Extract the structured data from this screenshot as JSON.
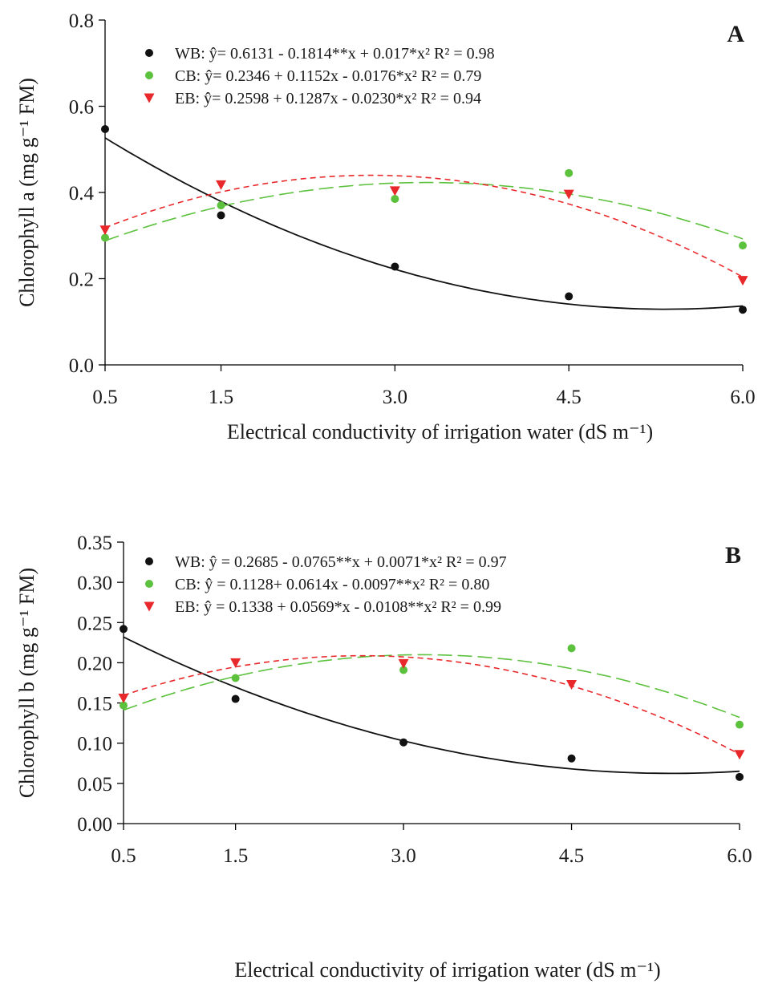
{
  "colors": {
    "WB": "#111111",
    "CB": "#5cc13c",
    "EB": "#e8282a"
  },
  "chart_data": [
    {
      "type": "scatter",
      "panel_label": "A",
      "ylabel": "Chlorophyll a (mg g⁻¹ FM)",
      "xlabel": "Electrical conductivity of irrigation water (dS m⁻¹)",
      "x": [
        0.5,
        1.5,
        3.0,
        4.5,
        6.0
      ],
      "x_tick_labels": [
        "0.5",
        "1.5",
        "3.0",
        "4.5",
        "6.0"
      ],
      "ylim": [
        0.0,
        0.8
      ],
      "y_ticks": [
        0.0,
        0.2,
        0.4,
        0.6,
        0.8
      ],
      "y_tick_labels": [
        "0.0",
        "0.2",
        "0.4",
        "0.6",
        "0.8"
      ],
      "legend_position": "top-left",
      "series": [
        {
          "name": "WB",
          "marker": "circle",
          "line": "solid",
          "legend": "WB: ŷ= 0.6131 - 0.1814**x + 0.017*x²  R² = 0.98",
          "coef": [
            0.6131,
            -0.1814,
            0.017
          ],
          "values": [
            0.547,
            0.347,
            0.228,
            0.159,
            0.128
          ]
        },
        {
          "name": "CB",
          "marker": "circle",
          "line": "long-dash",
          "legend": "CB: ŷ= 0.2346 + 0.1152x - 0.0176*x²  R² = 0.79",
          "coef": [
            0.2346,
            0.1152,
            -0.0176
          ],
          "values": [
            0.295,
            0.37,
            0.385,
            0.445,
            0.277
          ]
        },
        {
          "name": "EB",
          "marker": "triangle-down",
          "line": "short-dash",
          "legend": "EB: ŷ= 0.2598 + 0.1287x - 0.0230*x²  R² = 0.94",
          "coef": [
            0.2598,
            0.1287,
            -0.023
          ],
          "values": [
            0.313,
            0.418,
            0.404,
            0.396,
            0.196
          ]
        }
      ]
    },
    {
      "type": "scatter",
      "panel_label": "B",
      "ylabel": "Chlorophyll b (mg g⁻¹ FM)",
      "xlabel": "Electrical conductivity of irrigation water (dS m⁻¹)",
      "x": [
        0.5,
        1.5,
        3.0,
        4.5,
        6.0
      ],
      "x_tick_labels": [
        "0.5",
        "1.5",
        "3.0",
        "4.5",
        "6.0"
      ],
      "ylim": [
        0.0,
        0.35
      ],
      "y_ticks": [
        0.0,
        0.05,
        0.1,
        0.15,
        0.2,
        0.25,
        0.3,
        0.35
      ],
      "y_tick_labels": [
        "0.00",
        "0.05",
        "0.10",
        "0.15",
        "0.20",
        "0.25",
        "0.30",
        "0.35"
      ],
      "legend_position": "top-left",
      "series": [
        {
          "name": "WB",
          "marker": "circle",
          "line": "solid",
          "legend": "WB: ŷ = 0.2685 - 0.0765**x + 0.0071*x²  R² = 0.97",
          "coef": [
            0.2685,
            -0.0765,
            0.0071
          ],
          "values": [
            0.242,
            0.155,
            0.101,
            0.081,
            0.058
          ]
        },
        {
          "name": "CB",
          "marker": "circle",
          "line": "long-dash",
          "legend": "CB: ŷ = 0.1128+ 0.0614x - 0.0097**x²  R² = 0.80",
          "coef": [
            0.1128,
            0.0614,
            -0.0097
          ],
          "values": [
            0.147,
            0.181,
            0.191,
            0.218,
            0.123
          ]
        },
        {
          "name": "EB",
          "marker": "triangle-down",
          "line": "short-dash",
          "legend": "EB: ŷ = 0.1338 + 0.0569*x - 0.0108**x²  R² = 0.99",
          "coef": [
            0.1338,
            0.0569,
            -0.0108
          ],
          "values": [
            0.156,
            0.2,
            0.199,
            0.173,
            0.086
          ]
        }
      ]
    }
  ]
}
